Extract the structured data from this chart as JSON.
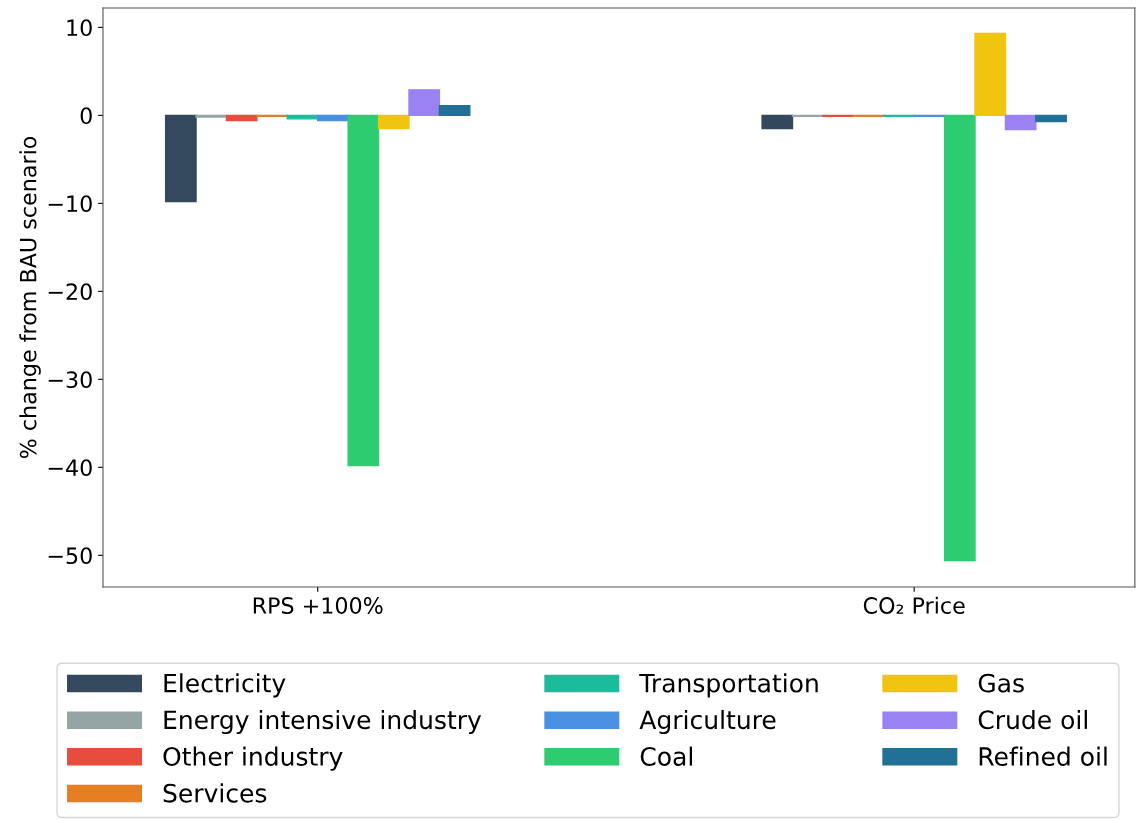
{
  "chart_data": {
    "type": "bar",
    "ylabel": "% change from BAU scenario",
    "categories": [
      "RPS +100%",
      "CO₂ Price"
    ],
    "series": [
      {
        "name": "Electricity",
        "color": "#34495e",
        "values": [
          -9.8,
          -1.5
        ]
      },
      {
        "name": "Energy intensive industry",
        "color": "#95a5a6",
        "values": [
          -0.2,
          -0.1
        ]
      },
      {
        "name": "Other industry",
        "color": "#e74c3c",
        "values": [
          -0.6,
          -0.1
        ]
      },
      {
        "name": "Services",
        "color": "#e67e22",
        "values": [
          -0.1,
          -0.1
        ]
      },
      {
        "name": "Transportation",
        "color": "#1abc9c",
        "values": [
          -0.4,
          -0.1
        ]
      },
      {
        "name": "Agriculture",
        "color": "#4a90e2",
        "values": [
          -0.6,
          -0.1
        ]
      },
      {
        "name": "Coal",
        "color": "#2ecc71",
        "values": [
          -39.8,
          -50.6
        ]
      },
      {
        "name": "Gas",
        "color": "#f1c40f",
        "values": [
          -1.5,
          9.3
        ]
      },
      {
        "name": "Crude oil",
        "color": "#9b82f3",
        "values": [
          2.9,
          -1.6
        ]
      },
      {
        "name": "Refined oil",
        "color": "#217096",
        "values": [
          1.1,
          -0.7
        ]
      }
    ],
    "ylim": [
      -53.6,
      12.2
    ],
    "yticks": [
      {
        "value": -50,
        "label": "−50"
      },
      {
        "value": -40,
        "label": "−40"
      },
      {
        "value": -30,
        "label": "−30"
      },
      {
        "value": -20,
        "label": "−20"
      },
      {
        "value": -10,
        "label": "−10"
      },
      0,
      10
    ],
    "grid": false,
    "legend": "bottom"
  }
}
